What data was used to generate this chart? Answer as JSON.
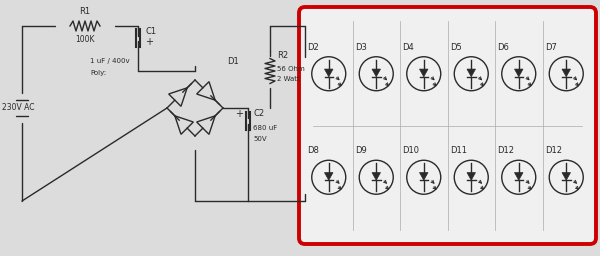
{
  "bg_color": "#dcdcdc",
  "line_color": "#2a2a2a",
  "red_box_color": "#cc0000",
  "grid_color": "#aaaaaa",
  "white": "#ffffff",
  "ac_label": "230V AC",
  "r1_label": "R1",
  "r1_val": "100K",
  "c1_label": "C1",
  "c1_plus": "+",
  "c1_val1": "1 uF / 400v",
  "c1_val2": "Poly:",
  "d1_label": "D1",
  "r2_label": "R2",
  "r2_val1": "56 Ohm",
  "r2_val2": "2 Watt",
  "c2_plus": "+",
  "c2_label": "C2",
  "c2_val1": "680 uF",
  "c2_val2": "50V",
  "led_row1": [
    "D2",
    "D3",
    "D4",
    "D5",
    "D6",
    "D7"
  ],
  "led_row2": [
    "D8",
    "D9",
    "D10",
    "D11",
    "D12",
    "D12"
  ]
}
